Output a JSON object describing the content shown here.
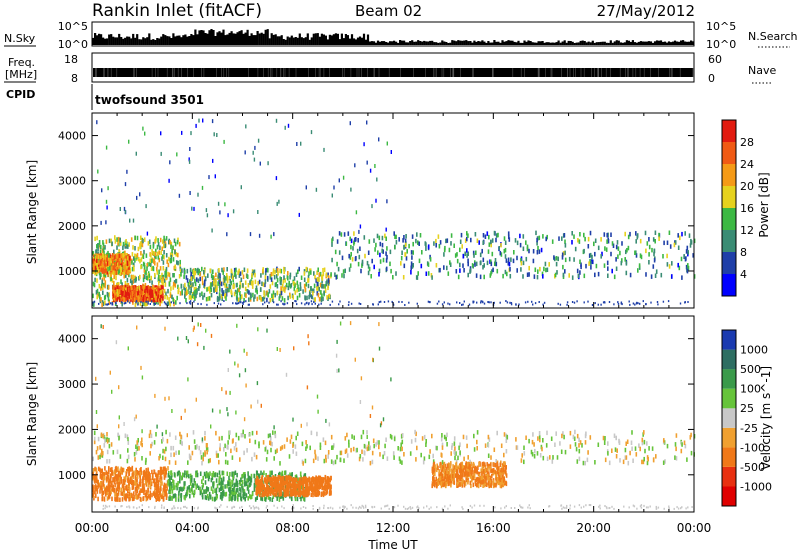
{
  "header": {
    "station": "Rankin Inlet (fitACF)",
    "beam": "Beam 02",
    "date": "27/May/2012"
  },
  "strips": {
    "nsky_label": "N.Sky",
    "nsky_left_ticks": [
      "10^5",
      "10^0"
    ],
    "nsearch_label": "N.Search",
    "nsearch_right_ticks": [
      "10^5",
      "10^0"
    ],
    "freq_label_top": "Freq.",
    "freq_label_unit": "[MHz]",
    "freq_ticks": [
      "18",
      "8"
    ],
    "nave_label": "Nave",
    "nave_ticks": [
      "60",
      "0"
    ],
    "cpid_label": "CPID",
    "cpid_value": "twofsound 3501"
  },
  "chart_data": [
    {
      "type": "heatmap",
      "panel": "power",
      "ylabel": "Slant Range [km]",
      "colorbar_label": "Power [dB]",
      "colorbar_ticks": [
        "28",
        "24",
        "20",
        "16",
        "12",
        "8",
        "4"
      ],
      "colors": [
        "#0000ff",
        "#1f3fa8",
        "#3a8c74",
        "#3cb843",
        "#e6d21e",
        "#f59a16",
        "#f05a14",
        "#e21b10"
      ],
      "y_ticks": [
        "4000",
        "3000",
        "2000",
        "1000"
      ],
      "x_range_hours": [
        0,
        24
      ],
      "y_range_km": [
        180,
        4500
      ],
      "regions": [
        {
          "t": [
            0,
            3.5
          ],
          "r": [
            300,
            1800
          ],
          "value_db": 16
        },
        {
          "t": [
            0,
            1.5
          ],
          "r": [
            1000,
            1400
          ],
          "value_db": 22
        },
        {
          "t": [
            0.8,
            2.8
          ],
          "r": [
            400,
            700
          ],
          "value_db": 26
        },
        {
          "t": [
            3.5,
            9.5
          ],
          "r": [
            400,
            1100
          ],
          "value_db": 14
        },
        {
          "t": [
            9.5,
            24
          ],
          "r": [
            900,
            1900
          ],
          "value_db": 10
        }
      ]
    },
    {
      "type": "heatmap",
      "panel": "velocity",
      "ylabel": "Slant Range [km]",
      "colorbar_label": "Velocity [m s^-1]",
      "colorbar_ticks": [
        "1000",
        "500",
        "100",
        "25",
        "-25",
        "-100",
        "-500",
        "-1000"
      ],
      "colors": [
        "#1a3ab0",
        "#2e6e62",
        "#3a9a4a",
        "#66c43a",
        "#c8c8c8",
        "#f0a030",
        "#f07818",
        "#e83010",
        "#e00000"
      ],
      "y_ticks": [
        "4000",
        "3000",
        "2000",
        "1000"
      ],
      "x_ticks": [
        "00:00",
        "04:00",
        "08:00",
        "12:00",
        "16:00",
        "20:00",
        "00:00"
      ],
      "xlabel": "Time UT",
      "x_range_hours": [
        0,
        24
      ],
      "y_range_km": [
        180,
        4500
      ],
      "regions": [
        {
          "t": [
            0,
            24
          ],
          "r": [
            1300,
            2000
          ],
          "value_ms": 0
        },
        {
          "t": [
            0,
            3.0
          ],
          "r": [
            500,
            1200
          ],
          "value_ms": -150
        },
        {
          "t": [
            3.0,
            8.5
          ],
          "r": [
            500,
            1100
          ],
          "value_ms": 120
        },
        {
          "t": [
            6.5,
            9.5
          ],
          "r": [
            600,
            1000
          ],
          "value_ms": -200
        },
        {
          "t": [
            13.5,
            16.5
          ],
          "r": [
            800,
            1300
          ],
          "value_ms": -120
        }
      ]
    }
  ]
}
